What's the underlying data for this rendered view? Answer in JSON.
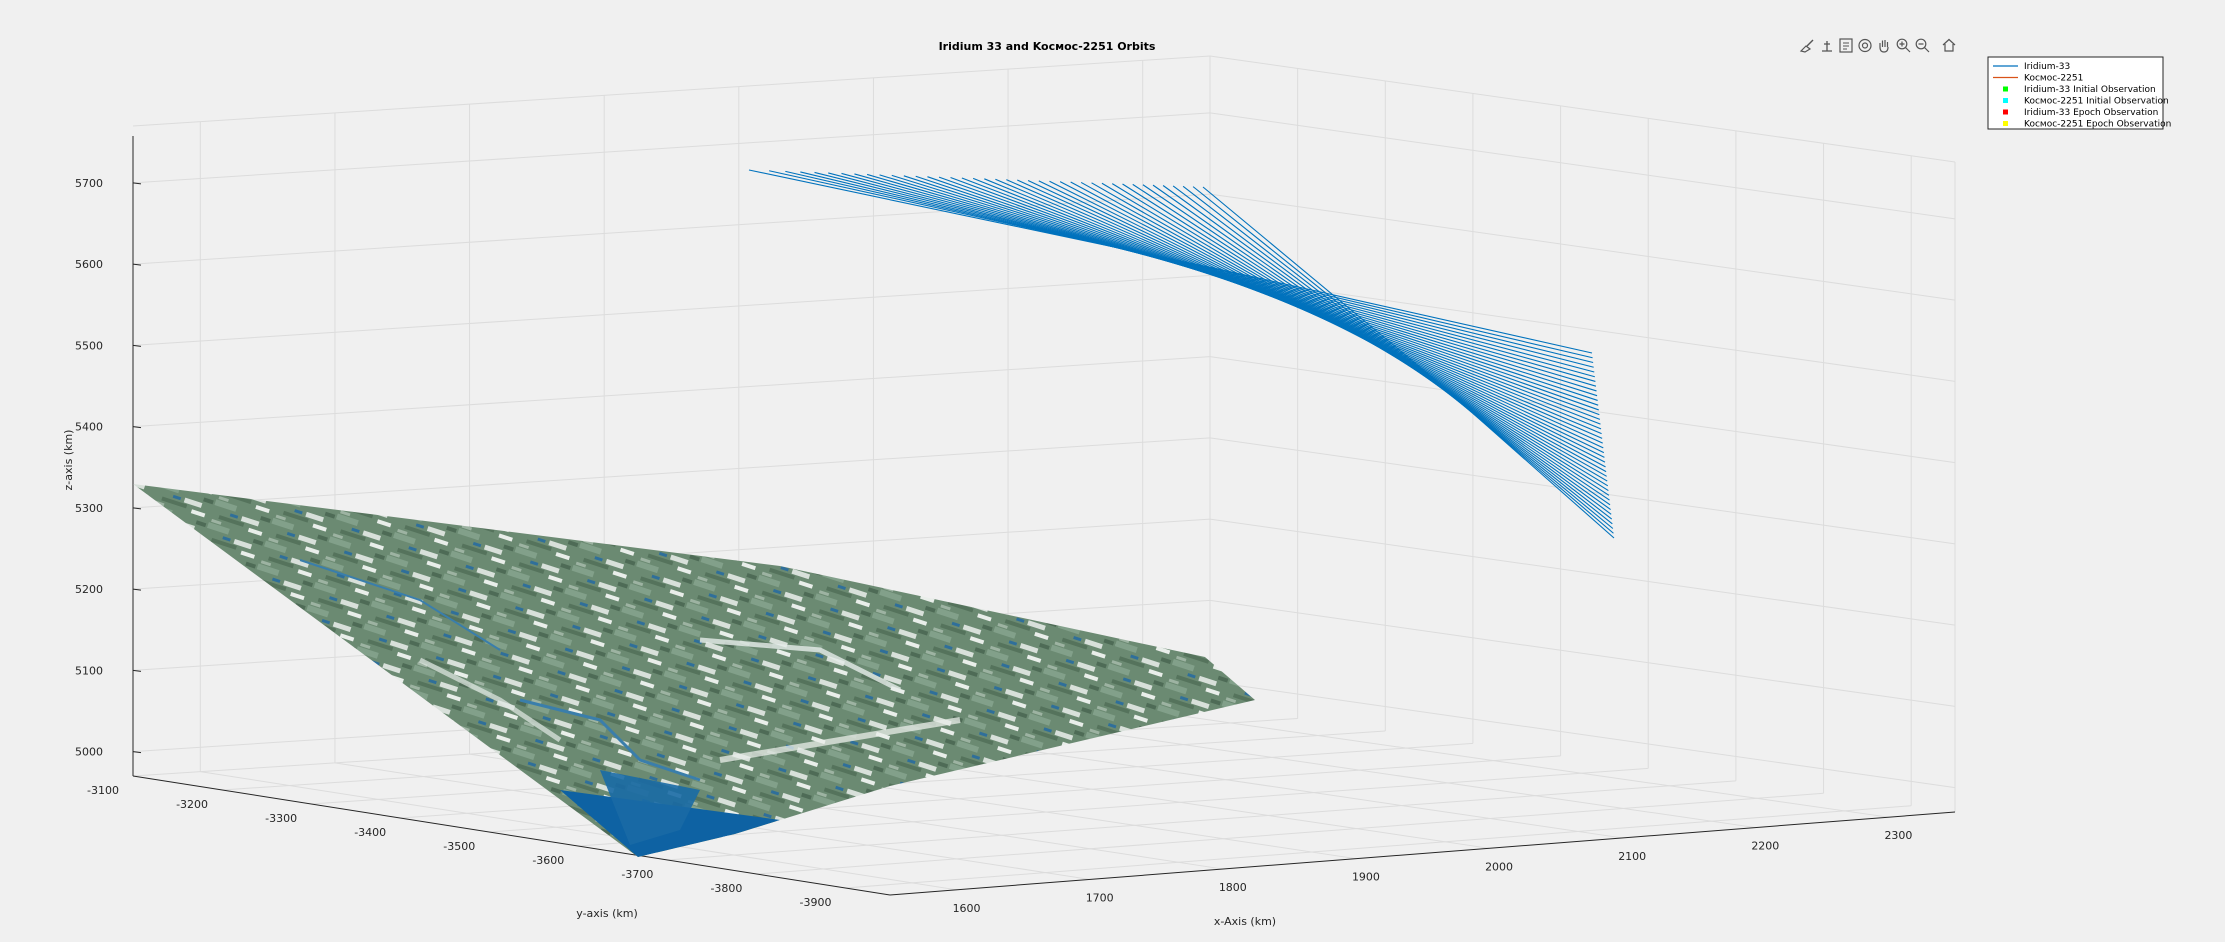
{
  "chart_data": {
    "type": "line",
    "title": "Iridium 33 and Kocмoc-2251 Orbits",
    "xlabel": "x-Axis (km)",
    "ylabel": "y-axis (km)",
    "zlabel": "z-axis (km)",
    "xlim": [
      1550,
      2350
    ],
    "ylim": [
      -3950,
      -3100
    ],
    "zlim": [
      4970,
      5770
    ],
    "x_ticks": [
      "1600",
      "1700",
      "1800",
      "1900",
      "2000",
      "2100",
      "2200",
      "2300"
    ],
    "y_ticks": [
      "-3100",
      "-3200",
      "-3300",
      "-3400",
      "-3500",
      "-3600",
      "-3700",
      "-3800",
      "-3900"
    ],
    "z_ticks": [
      "5000",
      "5100",
      "5200",
      "5300",
      "5400",
      "5500",
      "5600",
      "5700"
    ],
    "grid": true,
    "legend_position": "top-right",
    "series": [
      {
        "name": "Iridium-33",
        "kind": "line",
        "color": "#0072bd",
        "orbit_passes": 40
      },
      {
        "name": "Kocмoc-2251",
        "kind": "line",
        "color": "#d95319"
      },
      {
        "name": "Iridium-33 Initial Observation",
        "kind": "marker",
        "color": "#00ff00"
      },
      {
        "name": "Kocмoc-2251 Initial Observation",
        "kind": "marker",
        "color": "#00ffff"
      },
      {
        "name": "Iridium-33 Epoch Observation",
        "kind": "marker",
        "color": "#ff0000"
      },
      {
        "name": "Kocмoc-2251 Epoch Observation",
        "kind": "marker",
        "color": "#ffff00"
      }
    ],
    "surface": {
      "kind": "earth-terrain-texture",
      "colors": [
        "#5c7a62",
        "#7d9a84",
        "#dfe6e0",
        "#0e62a3"
      ]
    }
  },
  "toolbar": {
    "icons": [
      "brush-icon",
      "data-tips-icon",
      "export-icon",
      "rotate-3d-icon",
      "pan-icon",
      "zoom-in-icon",
      "zoom-out-icon",
      "home-icon"
    ]
  }
}
